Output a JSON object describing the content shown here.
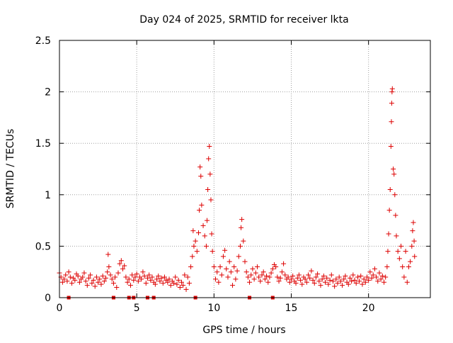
{
  "chart_data": {
    "type": "scatter",
    "title": "Day 024 of 2025, SRMTID for receiver lkta",
    "xlabel": "GPS time / hours",
    "ylabel": "SRMTID / TECUs",
    "xlim": [
      0,
      24
    ],
    "ylim": [
      0,
      2.5
    ],
    "xticks": [
      0,
      5,
      10,
      15,
      20
    ],
    "yticks": [
      0,
      0.5,
      1,
      1.5,
      2,
      2.5
    ],
    "xtick_labels": [
      "0",
      "5",
      "10",
      "15",
      "20"
    ],
    "ytick_labels": [
      "0",
      "0.5",
      "1",
      "1.5",
      "2",
      "2.5"
    ],
    "grid": true,
    "series": [
      {
        "name": "SRMTID",
        "marker": "plus",
        "color": "#dd0000",
        "points": [
          [
            0.0,
            0.24
          ],
          [
            0.1,
            0.2
          ],
          [
            0.2,
            0.15
          ],
          [
            0.3,
            0.18
          ],
          [
            0.4,
            0.22
          ],
          [
            0.5,
            0.16
          ],
          [
            0.6,
            0.25
          ],
          [
            0.7,
            0.2
          ],
          [
            0.8,
            0.14
          ],
          [
            0.9,
            0.19
          ],
          [
            1.0,
            0.17
          ],
          [
            1.1,
            0.23
          ],
          [
            1.2,
            0.21
          ],
          [
            1.3,
            0.15
          ],
          [
            1.4,
            0.18
          ],
          [
            1.5,
            0.2
          ],
          [
            1.6,
            0.24
          ],
          [
            1.7,
            0.16
          ],
          [
            1.8,
            0.12
          ],
          [
            1.9,
            0.19
          ],
          [
            2.0,
            0.22
          ],
          [
            2.1,
            0.14
          ],
          [
            2.2,
            0.17
          ],
          [
            2.3,
            0.11
          ],
          [
            2.4,
            0.2
          ],
          [
            2.5,
            0.15
          ],
          [
            2.6,
            0.18
          ],
          [
            2.7,
            0.13
          ],
          [
            2.8,
            0.21
          ],
          [
            2.9,
            0.16
          ],
          [
            3.0,
            0.19
          ],
          [
            3.1,
            0.25
          ],
          [
            3.15,
            0.42
          ],
          [
            3.2,
            0.3
          ],
          [
            3.3,
            0.22
          ],
          [
            3.4,
            0.18
          ],
          [
            3.5,
            0.14
          ],
          [
            3.6,
            0.2
          ],
          [
            3.7,
            0.1
          ],
          [
            3.8,
            0.24
          ],
          [
            3.9,
            0.33
          ],
          [
            4.0,
            0.36
          ],
          [
            4.1,
            0.28
          ],
          [
            4.2,
            0.31
          ],
          [
            4.3,
            0.2
          ],
          [
            4.4,
            0.15
          ],
          [
            4.5,
            0.18
          ],
          [
            4.6,
            0.12
          ],
          [
            4.7,
            0.22
          ],
          [
            4.8,
            0.17
          ],
          [
            4.9,
            0.2
          ],
          [
            5.0,
            0.23
          ],
          [
            5.1,
            0.16
          ],
          [
            5.2,
            0.2
          ],
          [
            5.3,
            0.18
          ],
          [
            5.4,
            0.25
          ],
          [
            5.5,
            0.21
          ],
          [
            5.6,
            0.14
          ],
          [
            5.7,
            0.19
          ],
          [
            5.8,
            0.22
          ],
          [
            5.9,
            0.17
          ],
          [
            6.0,
            0.2
          ],
          [
            6.1,
            0.15
          ],
          [
            6.2,
            0.13
          ],
          [
            6.3,
            0.18
          ],
          [
            6.4,
            0.21
          ],
          [
            6.5,
            0.16
          ],
          [
            6.6,
            0.19
          ],
          [
            6.7,
            0.14
          ],
          [
            6.8,
            0.2
          ],
          [
            6.9,
            0.17
          ],
          [
            7.0,
            0.15
          ],
          [
            7.1,
            0.18
          ],
          [
            7.2,
            0.12
          ],
          [
            7.3,
            0.16
          ],
          [
            7.4,
            0.14
          ],
          [
            7.5,
            0.2
          ],
          [
            7.6,
            0.13
          ],
          [
            7.7,
            0.17
          ],
          [
            7.8,
            0.1
          ],
          [
            7.9,
            0.15
          ],
          [
            8.0,
            0.12
          ],
          [
            8.1,
            0.22
          ],
          [
            8.2,
            0.08
          ],
          [
            8.3,
            0.2
          ],
          [
            8.4,
            0.14
          ],
          [
            8.5,
            0.3
          ],
          [
            8.6,
            0.4
          ],
          [
            8.65,
            0.65
          ],
          [
            8.7,
            0.5
          ],
          [
            8.8,
            0.55
          ],
          [
            8.9,
            0.45
          ],
          [
            9.0,
            0.63
          ],
          [
            9.05,
            0.85
          ],
          [
            9.1,
            1.27
          ],
          [
            9.15,
            1.18
          ],
          [
            9.2,
            0.9
          ],
          [
            9.3,
            0.7
          ],
          [
            9.4,
            0.6
          ],
          [
            9.5,
            0.5
          ],
          [
            9.55,
            0.75
          ],
          [
            9.6,
            1.05
          ],
          [
            9.65,
            1.35
          ],
          [
            9.7,
            1.47
          ],
          [
            9.75,
            1.2
          ],
          [
            9.8,
            0.95
          ],
          [
            9.85,
            0.62
          ],
          [
            9.9,
            0.45
          ],
          [
            10.0,
            0.3
          ],
          [
            10.1,
            0.18
          ],
          [
            10.2,
            0.25
          ],
          [
            10.3,
            0.15
          ],
          [
            10.4,
            0.3
          ],
          [
            10.5,
            0.22
          ],
          [
            10.6,
            0.4
          ],
          [
            10.7,
            0.46
          ],
          [
            10.8,
            0.28
          ],
          [
            10.9,
            0.2
          ],
          [
            11.0,
            0.35
          ],
          [
            11.1,
            0.25
          ],
          [
            11.2,
            0.12
          ],
          [
            11.3,
            0.3
          ],
          [
            11.4,
            0.18
          ],
          [
            11.5,
            0.26
          ],
          [
            11.6,
            0.4
          ],
          [
            11.7,
            0.5
          ],
          [
            11.75,
            0.68
          ],
          [
            11.8,
            0.76
          ],
          [
            11.9,
            0.55
          ],
          [
            12.0,
            0.35
          ],
          [
            12.1,
            0.25
          ],
          [
            12.2,
            0.2
          ],
          [
            12.3,
            0.15
          ],
          [
            12.4,
            0.22
          ],
          [
            12.5,
            0.28
          ],
          [
            12.6,
            0.18
          ],
          [
            12.7,
            0.24
          ],
          [
            12.8,
            0.3
          ],
          [
            12.9,
            0.2
          ],
          [
            13.0,
            0.16
          ],
          [
            13.1,
            0.22
          ],
          [
            13.2,
            0.25
          ],
          [
            13.3,
            0.18
          ],
          [
            13.4,
            0.21
          ],
          [
            13.5,
            0.15
          ],
          [
            13.6,
            0.2
          ],
          [
            13.7,
            0.24
          ],
          [
            13.8,
            0.28
          ],
          [
            13.9,
            0.32
          ],
          [
            14.0,
            0.3
          ],
          [
            14.1,
            0.2
          ],
          [
            14.2,
            0.16
          ],
          [
            14.3,
            0.19
          ],
          [
            14.4,
            0.25
          ],
          [
            14.5,
            0.33
          ],
          [
            14.6,
            0.22
          ],
          [
            14.7,
            0.18
          ],
          [
            14.8,
            0.2
          ],
          [
            14.9,
            0.15
          ],
          [
            15.0,
            0.18
          ],
          [
            15.1,
            0.21
          ],
          [
            15.2,
            0.16
          ],
          [
            15.3,
            0.14
          ],
          [
            15.4,
            0.19
          ],
          [
            15.5,
            0.22
          ],
          [
            15.6,
            0.17
          ],
          [
            15.7,
            0.13
          ],
          [
            15.8,
            0.2
          ],
          [
            15.9,
            0.18
          ],
          [
            16.0,
            0.15
          ],
          [
            16.1,
            0.22
          ],
          [
            16.2,
            0.19
          ],
          [
            16.3,
            0.26
          ],
          [
            16.4,
            0.17
          ],
          [
            16.5,
            0.14
          ],
          [
            16.6,
            0.2
          ],
          [
            16.7,
            0.23
          ],
          [
            16.8,
            0.16
          ],
          [
            16.9,
            0.12
          ],
          [
            17.0,
            0.18
          ],
          [
            17.1,
            0.21
          ],
          [
            17.2,
            0.15
          ],
          [
            17.3,
            0.19
          ],
          [
            17.4,
            0.13
          ],
          [
            17.5,
            0.17
          ],
          [
            17.6,
            0.22
          ],
          [
            17.7,
            0.16
          ],
          [
            17.8,
            0.11
          ],
          [
            17.9,
            0.18
          ],
          [
            18.0,
            0.14
          ],
          [
            18.1,
            0.2
          ],
          [
            18.2,
            0.16
          ],
          [
            18.3,
            0.12
          ],
          [
            18.4,
            0.18
          ],
          [
            18.5,
            0.21
          ],
          [
            18.6,
            0.15
          ],
          [
            18.7,
            0.13
          ],
          [
            18.8,
            0.19
          ],
          [
            18.9,
            0.16
          ],
          [
            19.0,
            0.22
          ],
          [
            19.1,
            0.17
          ],
          [
            19.2,
            0.14
          ],
          [
            19.3,
            0.2
          ],
          [
            19.4,
            0.16
          ],
          [
            19.5,
            0.21
          ],
          [
            19.6,
            0.13
          ],
          [
            19.7,
            0.18
          ],
          [
            19.8,
            0.15
          ],
          [
            19.9,
            0.2
          ],
          [
            20.0,
            0.17
          ],
          [
            20.1,
            0.25
          ],
          [
            20.2,
            0.19
          ],
          [
            20.3,
            0.22
          ],
          [
            20.4,
            0.28
          ],
          [
            20.5,
            0.2
          ],
          [
            20.6,
            0.16
          ],
          [
            20.7,
            0.24
          ],
          [
            20.8,
            0.18
          ],
          [
            20.9,
            0.21
          ],
          [
            21.0,
            0.15
          ],
          [
            21.1,
            0.2
          ],
          [
            21.2,
            0.3
          ],
          [
            21.25,
            0.45
          ],
          [
            21.3,
            0.62
          ],
          [
            21.35,
            0.85
          ],
          [
            21.4,
            1.05
          ],
          [
            21.45,
            1.47
          ],
          [
            21.48,
            1.71
          ],
          [
            21.5,
            1.89
          ],
          [
            21.52,
            2.0
          ],
          [
            21.54,
            2.03
          ],
          [
            21.6,
            1.25
          ],
          [
            21.65,
            1.2
          ],
          [
            21.7,
            1.0
          ],
          [
            21.75,
            0.8
          ],
          [
            21.8,
            0.6
          ],
          [
            21.9,
            0.45
          ],
          [
            22.0,
            0.38
          ],
          [
            22.1,
            0.5
          ],
          [
            22.2,
            0.3
          ],
          [
            22.3,
            0.2
          ],
          [
            22.4,
            0.45
          ],
          [
            22.5,
            0.15
          ],
          [
            22.6,
            0.3
          ],
          [
            22.7,
            0.35
          ],
          [
            22.8,
            0.5
          ],
          [
            22.85,
            0.65
          ],
          [
            22.9,
            0.73
          ],
          [
            22.95,
            0.55
          ],
          [
            22.98,
            0.4
          ]
        ]
      }
    ],
    "bottom_markers": [
      0.6,
      3.5,
      4.5,
      4.8,
      5.7,
      6.1,
      8.8,
      12.3,
      13.8
    ]
  }
}
